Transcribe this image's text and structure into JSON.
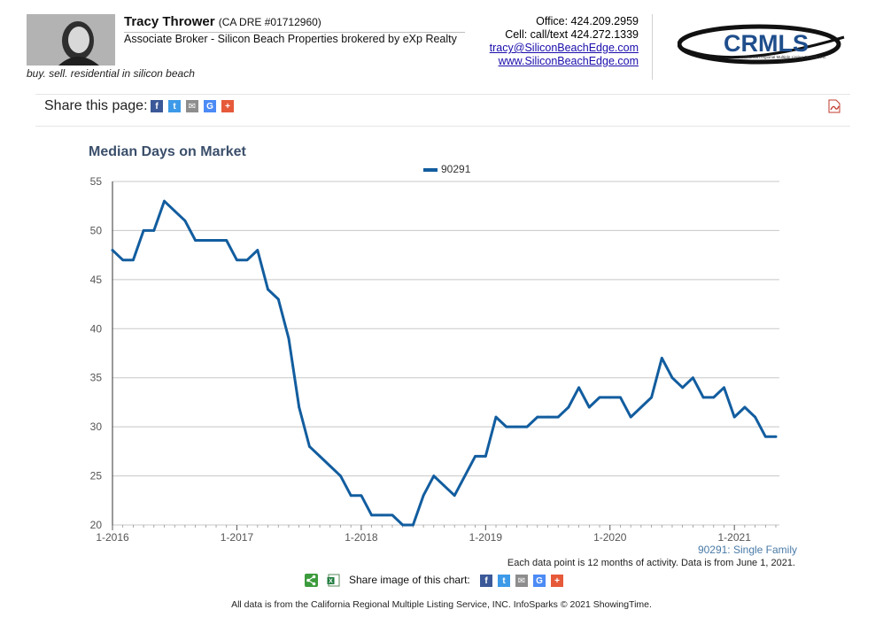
{
  "agent": {
    "name": "Tracy Thrower",
    "dre": "(CA DRE #01712960)",
    "title": "Associate Broker - Silicon Beach Properties brokered by eXp Realty",
    "tagline": "buy. sell. residential in silicon beach"
  },
  "contact": {
    "office": "Office: 424.209.2959",
    "cell": "Cell: call/text 424.272.1339",
    "email": "tracy@SiliconBeachEdge.com",
    "website": "www.SiliconBeachEdge.com"
  },
  "logo": {
    "text": "CRMLS",
    "subtext": "California Regional Multiple Listing Service, Inc."
  },
  "share": {
    "label": "Share this page:",
    "image_label": "Share image of this chart:"
  },
  "icons": {
    "facebook": "facebook-icon",
    "twitter": "twitter-icon",
    "email": "email-icon",
    "google": "google-icon",
    "plus": "plus-icon",
    "pdf": "pdf-icon",
    "share": "share-icon",
    "excel": "excel-icon"
  },
  "colors": {
    "series": "#125d9f",
    "title": "#3b4f6b",
    "grid": "#c8c8c8",
    "link": "#1a0dab",
    "note": "#4a7ba7"
  },
  "chart_data": {
    "type": "line",
    "title": "Median Days on Market",
    "legend_position": "top-center",
    "xlabel": "",
    "ylabel": "",
    "ylim": [
      20,
      55
    ],
    "yticks": [
      20,
      25,
      30,
      35,
      40,
      45,
      50,
      55
    ],
    "xlim": [
      0,
      64
    ],
    "xticks": [
      {
        "label": "1-2016",
        "x": 0
      },
      {
        "label": "1-2017",
        "x": 12
      },
      {
        "label": "1-2018",
        "x": 24
      },
      {
        "label": "1-2019",
        "x": 36
      },
      {
        "label": "1-2020",
        "x": 48
      },
      {
        "label": "1-2021",
        "x": 60
      }
    ],
    "grid": true,
    "series": [
      {
        "name": "90291",
        "x": [
          0,
          1,
          2,
          3,
          4,
          5,
          6,
          7,
          8,
          9,
          10,
          11,
          12,
          13,
          14,
          15,
          16,
          17,
          18,
          19,
          20,
          21,
          22,
          23,
          24,
          25,
          26,
          27,
          28,
          29,
          30,
          31,
          32,
          33,
          34,
          35,
          36,
          37,
          38,
          39,
          40,
          41,
          42,
          43,
          44,
          45,
          46,
          47,
          48,
          49,
          50,
          51,
          52,
          53,
          54,
          55,
          56,
          57,
          58,
          59,
          60,
          61,
          62,
          63,
          64
        ],
        "values": [
          48,
          47,
          47,
          50,
          50,
          53,
          52,
          51,
          49,
          49,
          49,
          49,
          47,
          47,
          48,
          44,
          43,
          39,
          32,
          28,
          27,
          26,
          25,
          23,
          23,
          21,
          21,
          21,
          20,
          20,
          23,
          25,
          24,
          23,
          25,
          27,
          27,
          31,
          30,
          30,
          30,
          31,
          31,
          31,
          32,
          34,
          32,
          33,
          33,
          33,
          31,
          32,
          33,
          37,
          35,
          34,
          35,
          33,
          33,
          34,
          31,
          32,
          31,
          29,
          29
        ]
      }
    ],
    "series_note": "90291: Single Family",
    "data_note": "Each data point is 12 months of activity. Data is from June 1, 2021."
  },
  "footer": "All data is from the California Regional Multiple Listing Service, INC. InfoSparks © 2021 ShowingTime."
}
